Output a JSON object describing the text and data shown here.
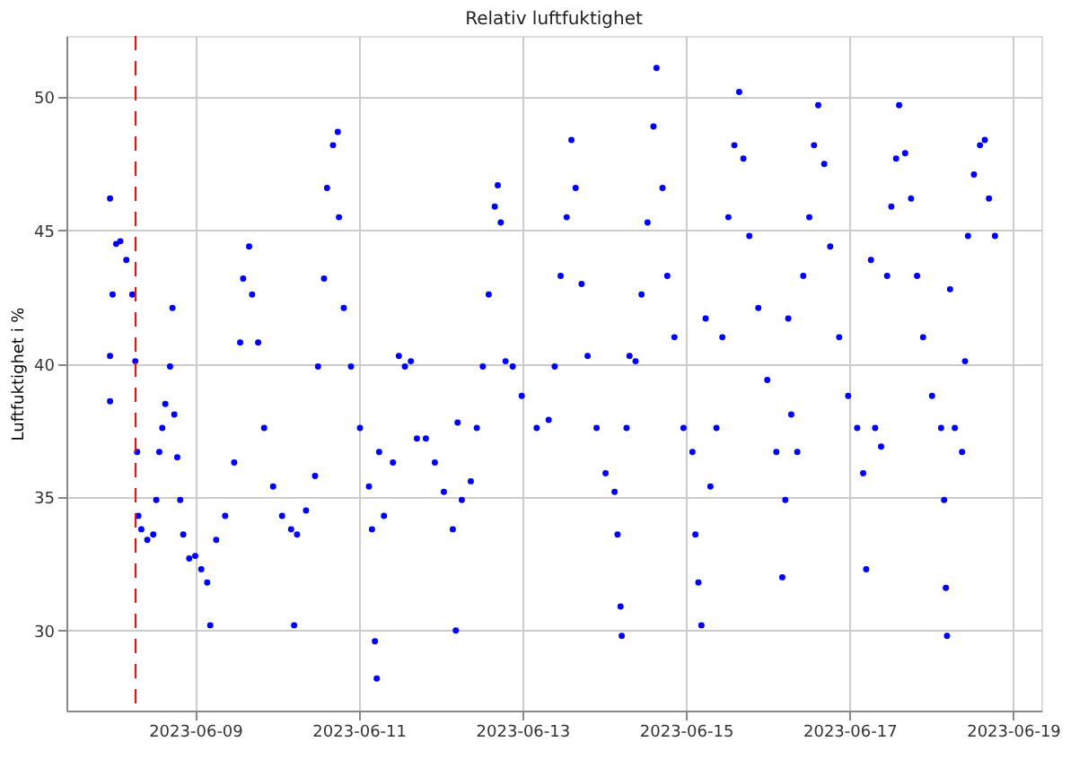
{
  "chart_data": {
    "type": "scatter",
    "title": "Relativ luftfuktighet",
    "ylabel": "Luftfuktighet i %",
    "xlim": [
      "2023-06-07T10:12",
      "2023-06-19T08:18"
    ],
    "xticks": [
      "2023-06-09",
      "2023-06-11",
      "2023-06-13",
      "2023-06-15",
      "2023-06-17",
      "2023-06-19"
    ],
    "ylim": [
      27,
      52.3
    ],
    "yticks": [
      30,
      35,
      40,
      45,
      50
    ],
    "grid": true,
    "marker": "circle",
    "ref_lines": [
      {
        "axis": "x",
        "value": "2023-06-08T06:30",
        "label": null,
        "color": "#ff0000",
        "line_style": "dashed"
      }
    ],
    "series": [
      {
        "color": "#0000ff",
        "x": [
          "2023-06-07T23:00",
          "2023-06-07T23:00",
          "2023-06-07T23:00",
          "2023-06-07T23:45",
          "2023-06-08T00:47",
          "2023-06-08T02:01",
          "2023-06-08T03:47",
          "2023-06-08T05:32",
          "2023-06-08T06:25",
          "2023-06-08T06:57",
          "2023-06-08T07:18",
          "2023-06-08T08:11",
          "2023-06-08T09:56",
          "2023-06-08T11:41",
          "2023-06-08T12:34",
          "2023-06-08T13:27",
          "2023-06-08T14:20",
          "2023-06-08T15:13",
          "2023-06-08T16:37",
          "2023-06-08T17:19",
          "2023-06-08T17:51",
          "2023-06-08T18:44",
          "2023-06-08T19:36",
          "2023-06-08T20:29",
          "2023-06-08T22:14",
          "2023-06-09T00:00",
          "2023-06-09T01:46",
          "2023-06-09T03:31",
          "2023-06-09T04:24",
          "2023-06-09T06:09",
          "2023-06-09T08:47",
          "2023-06-09T11:26",
          "2023-06-09T13:11",
          "2023-06-09T14:04",
          "2023-06-09T15:49",
          "2023-06-09T16:42",
          "2023-06-09T18:28",
          "2023-06-09T20:13",
          "2023-06-09T22:51",
          "2023-06-10T01:29",
          "2023-06-10T04:08",
          "2023-06-10T05:01",
          "2023-06-10T05:53",
          "2023-06-10T08:31",
          "2023-06-10T11:10",
          "2023-06-10T12:02",
          "2023-06-10T13:48",
          "2023-06-10T14:41",
          "2023-06-10T16:26",
          "2023-06-10T17:50",
          "2023-06-10T18:11",
          "2023-06-10T19:36",
          "2023-06-10T21:43",
          "2023-06-11T00:21",
          "2023-06-11T02:59",
          "2023-06-11T03:52",
          "2023-06-11T04:44",
          "2023-06-11T05:16",
          "2023-06-11T05:58",
          "2023-06-11T07:23",
          "2023-06-11T10:01",
          "2023-06-11T11:46",
          "2023-06-11T13:32",
          "2023-06-11T15:17",
          "2023-06-11T17:03",
          "2023-06-11T19:41",
          "2023-06-11T22:19",
          "2023-06-12T00:58",
          "2023-06-12T03:35",
          "2023-06-12T04:28",
          "2023-06-12T05:00",
          "2023-06-12T06:14",
          "2023-06-12T08:52",
          "2023-06-12T10:38",
          "2023-06-12T12:23",
          "2023-06-12T14:08",
          "2023-06-12T15:54",
          "2023-06-12T16:47",
          "2023-06-12T17:40",
          "2023-06-12T19:04",
          "2023-06-12T21:10",
          "2023-06-12T23:49",
          "2023-06-13T04:12",
          "2023-06-13T07:43",
          "2023-06-13T09:29",
          "2023-06-13T11:14",
          "2023-06-13T13:00",
          "2023-06-13T14:24",
          "2023-06-13T15:38",
          "2023-06-13T17:23",
          "2023-06-13T19:09",
          "2023-06-13T21:47",
          "2023-06-14T00:25",
          "2023-06-14T03:04",
          "2023-06-14T03:56",
          "2023-06-14T04:49",
          "2023-06-14T05:10",
          "2023-06-14T06:35",
          "2023-06-14T07:27",
          "2023-06-14T09:13",
          "2023-06-14T10:58",
          "2023-06-14T12:44",
          "2023-06-14T14:29",
          "2023-06-14T15:22",
          "2023-06-14T17:08",
          "2023-06-14T18:32",
          "2023-06-14T20:38",
          "2023-06-14T23:17",
          "2023-06-15T01:55",
          "2023-06-15T02:47",
          "2023-06-15T03:40",
          "2023-06-15T04:33",
          "2023-06-15T05:47",
          "2023-06-15T07:11",
          "2023-06-15T08:57",
          "2023-06-15T10:42",
          "2023-06-15T12:28",
          "2023-06-15T14:13",
          "2023-06-15T15:38",
          "2023-06-15T16:52",
          "2023-06-15T18:37",
          "2023-06-15T21:15",
          "2023-06-15T23:53",
          "2023-06-16T02:32",
          "2023-06-16T04:17",
          "2023-06-16T05:10",
          "2023-06-16T06:02",
          "2023-06-16T06:55",
          "2023-06-16T08:41",
          "2023-06-16T10:26",
          "2023-06-16T12:12",
          "2023-06-16T13:36",
          "2023-06-16T14:50",
          "2023-06-16T16:35",
          "2023-06-16T18:21",
          "2023-06-16T20:59",
          "2023-06-16T23:37",
          "2023-06-17T02:16",
          "2023-06-17T04:01",
          "2023-06-17T04:54",
          "2023-06-17T06:18",
          "2023-06-17T07:32",
          "2023-06-17T09:17",
          "2023-06-17T11:03",
          "2023-06-17T12:17",
          "2023-06-17T13:41",
          "2023-06-17T14:34",
          "2023-06-17T16:20",
          "2023-06-17T18:05",
          "2023-06-17T19:50",
          "2023-06-17T21:36",
          "2023-06-18T00:14",
          "2023-06-18T02:53",
          "2023-06-18T03:46",
          "2023-06-18T04:17",
          "2023-06-18T04:38",
          "2023-06-18T05:31",
          "2023-06-18T06:55",
          "2023-06-18T09:02",
          "2023-06-18T09:55",
          "2023-06-18T10:47",
          "2023-06-18T12:32",
          "2023-06-18T14:18",
          "2023-06-18T15:43",
          "2023-06-18T16:56",
          "2023-06-18T18:42"
        ],
        "values": [
          46.2,
          38.6,
          40.3,
          42.6,
          44.5,
          44.6,
          43.9,
          42.6,
          40.1,
          36.7,
          34.3,
          33.8,
          33.4,
          33.6,
          34.9,
          36.7,
          37.6,
          38.5,
          39.9,
          42.1,
          38.1,
          36.5,
          34.9,
          33.6,
          32.7,
          32.8,
          32.3,
          31.8,
          30.2,
          33.4,
          34.3,
          36.3,
          40.8,
          43.2,
          44.4,
          42.6,
          40.8,
          37.6,
          35.4,
          34.3,
          33.8,
          30.2,
          33.6,
          34.5,
          35.8,
          39.9,
          43.2,
          46.6,
          48.2,
          48.7,
          45.5,
          42.1,
          39.9,
          37.6,
          35.4,
          33.8,
          29.6,
          28.2,
          36.7,
          34.3,
          36.3,
          40.3,
          39.9,
          40.1,
          37.2,
          37.2,
          36.3,
          35.2,
          33.8,
          30.0,
          37.8,
          34.9,
          35.6,
          37.6,
          39.9,
          42.6,
          45.9,
          46.7,
          45.3,
          40.1,
          39.9,
          38.8,
          37.6,
          37.9,
          39.9,
          43.3,
          45.5,
          48.4,
          46.6,
          43.0,
          40.3,
          37.6,
          35.9,
          35.2,
          33.6,
          30.9,
          29.8,
          37.6,
          40.3,
          40.1,
          42.6,
          45.3,
          48.9,
          51.1,
          46.6,
          43.3,
          41.0,
          37.6,
          36.7,
          33.6,
          31.8,
          30.2,
          41.7,
          35.4,
          37.6,
          41.0,
          45.5,
          48.2,
          50.2,
          47.7,
          44.8,
          42.1,
          39.4,
          36.7,
          32.0,
          34.9,
          41.7,
          38.1,
          36.7,
          43.3,
          45.5,
          48.2,
          49.7,
          47.5,
          44.4,
          41.0,
          38.8,
          37.6,
          35.9,
          32.3,
          43.9,
          37.6,
          36.9,
          43.3,
          45.9,
          47.7,
          49.7,
          47.9,
          46.2,
          43.3,
          41.0,
          38.8,
          37.6,
          34.9,
          31.6,
          29.8,
          42.8,
          37.6,
          36.7,
          40.1,
          44.8,
          47.1,
          48.2,
          48.4,
          46.2,
          44.8
        ]
      }
    ]
  }
}
